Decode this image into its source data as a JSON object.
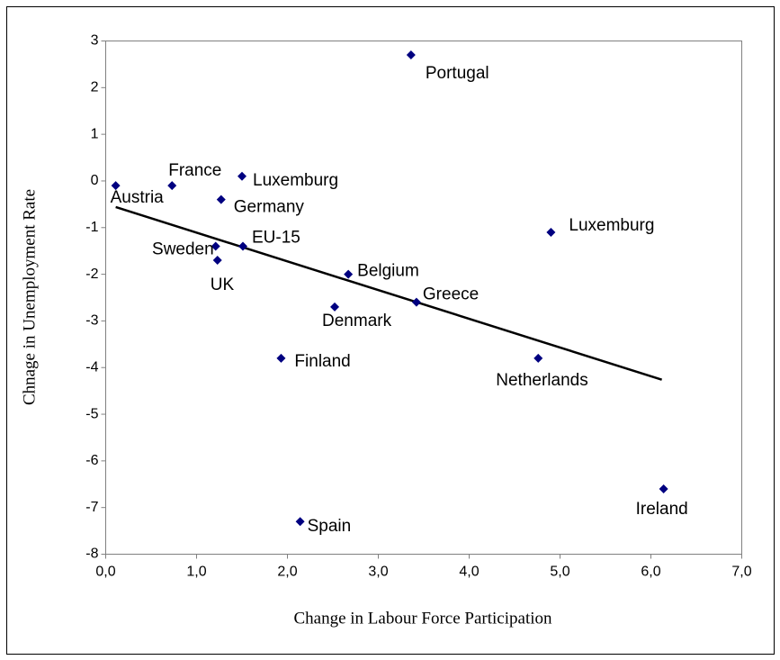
{
  "chart_data": {
    "type": "scatter",
    "x_label": "Change in Labour Force Participation",
    "y_label": "Chnage in Unemployment Rate",
    "labels": [
      "Austria",
      "France",
      "Luxemburg",
      "Germany",
      "Sweden",
      "EU-15",
      "UK",
      "Belgium",
      "Denmark",
      "Greece",
      "Portugal",
      "Luxemburg",
      "Netherlands",
      "Finland",
      "Spain",
      "Ireland"
    ],
    "x": [
      0.11,
      0.73,
      1.5,
      1.27,
      1.21,
      1.51,
      1.23,
      2.67,
      2.52,
      3.42,
      3.36,
      4.9,
      4.76,
      1.93,
      2.14,
      6.14
    ],
    "values": [
      -0.1,
      -0.1,
      0.1,
      -0.4,
      -1.4,
      -1.4,
      -1.7,
      -2.0,
      -2.7,
      -2.6,
      2.7,
      -1.1,
      -3.8,
      -3.8,
      -7.3,
      -6.6
    ],
    "color": "#000080",
    "trendline": {
      "x": [
        0.11,
        6.12
      ],
      "values": [
        -0.56,
        -4.26
      ],
      "color": "#000000"
    },
    "xlim": [
      0,
      7
    ],
    "ylim": [
      -8,
      3
    ],
    "xticks": [
      {
        "value": 0,
        "label": "0,0"
      },
      {
        "value": 1,
        "label": "1,0"
      },
      {
        "value": 2,
        "label": "2,0"
      },
      {
        "value": 3,
        "label": "3,0"
      },
      {
        "value": 4,
        "label": "4,0"
      },
      {
        "value": 5,
        "label": "5,0"
      },
      {
        "value": 6,
        "label": "6,0"
      },
      {
        "value": 7,
        "label": "7,0"
      }
    ],
    "yticks": [
      3,
      2,
      1,
      0,
      -1,
      -2,
      -3,
      -4,
      -5,
      -6,
      -7,
      -8
    ],
    "grid": false
  }
}
